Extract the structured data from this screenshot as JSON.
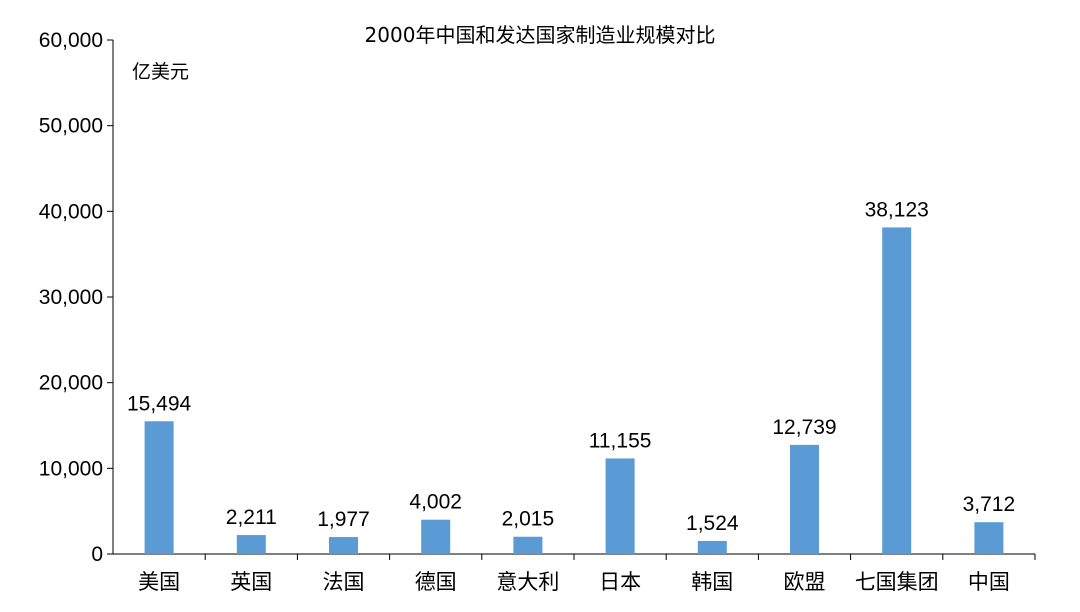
{
  "chart_data": {
    "type": "bar",
    "title": "2000年中国和发达国家制造业规模对比",
    "unit_label": "亿美元",
    "categories": [
      "美国",
      "英国",
      "法国",
      "德国",
      "意大利",
      "日本",
      "韩国",
      "欧盟",
      "七国集团",
      "中国"
    ],
    "values": [
      15494,
      2211,
      1977,
      4002,
      2015,
      11155,
      1524,
      12739,
      38123,
      3712
    ],
    "value_labels": [
      "15,494",
      "2,211",
      "1,977",
      "4,002",
      "2,015",
      "11,155",
      "1,524",
      "12,739",
      "38,123",
      "3,712"
    ],
    "ylim": [
      0,
      60000
    ],
    "yticks": [
      0,
      10000,
      20000,
      30000,
      40000,
      50000,
      60000
    ],
    "ytick_labels": [
      "0",
      "10,000",
      "20,000",
      "30,000",
      "40,000",
      "50,000",
      "60,000"
    ],
    "grid": false,
    "legend": "none",
    "bar_color": "#5b9bd5"
  }
}
